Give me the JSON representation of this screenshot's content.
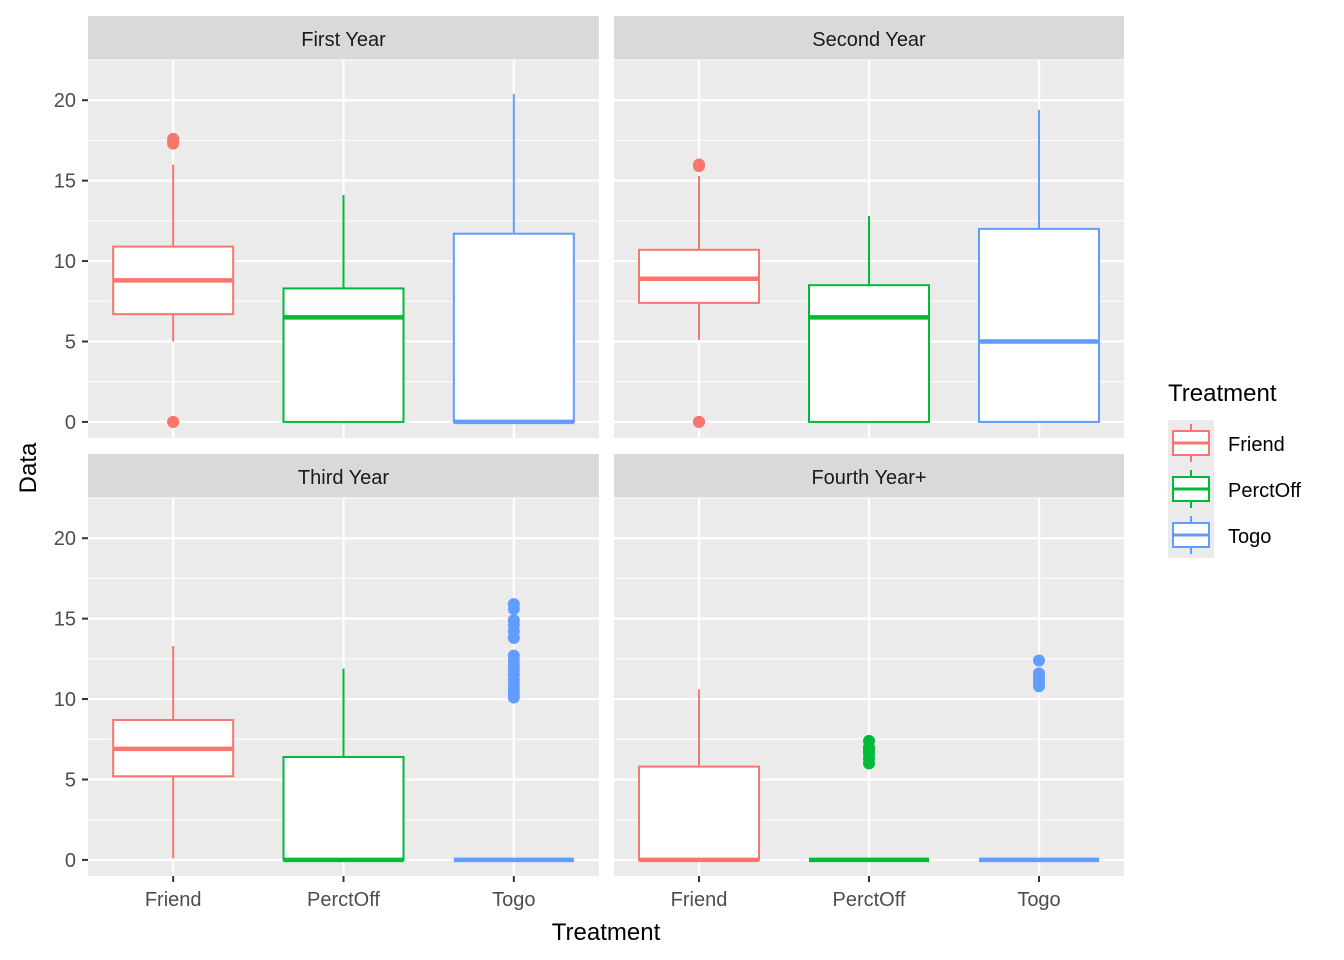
{
  "chart_data": {
    "type": "box",
    "xlabel": "Treatment",
    "ylabel": "Data",
    "ylim": [
      -1,
      22.5
    ],
    "yticks": [
      0,
      5,
      10,
      15,
      20
    ],
    "categories": [
      "Friend",
      "PerctOff",
      "Togo"
    ],
    "colors": {
      "Friend": "#F8766D",
      "PerctOff": "#00BA38",
      "Togo": "#619CFF"
    },
    "legend": {
      "title": "Treatment",
      "position": "right",
      "entries": [
        "Friend",
        "PerctOff",
        "Togo"
      ]
    },
    "facets": [
      {
        "title": "First Year",
        "boxes": [
          {
            "category": "Friend",
            "min": 5.0,
            "q1": 6.7,
            "median": 8.8,
            "q3": 10.9,
            "max": 16.0,
            "outliers": [
              17.3,
              17.4,
              17.5,
              17.6,
              0,
              0
            ]
          },
          {
            "category": "PerctOff",
            "min": 0,
            "q1": 0,
            "median": 6.5,
            "q3": 8.3,
            "max": 14.1,
            "outliers": []
          },
          {
            "category": "Togo",
            "min": 0,
            "q1": 0,
            "median": 0,
            "q3": 11.7,
            "max": 20.4,
            "outliers": []
          }
        ]
      },
      {
        "title": "Second Year",
        "boxes": [
          {
            "category": "Friend",
            "min": 5.1,
            "q1": 7.4,
            "median": 8.9,
            "q3": 10.7,
            "max": 15.3,
            "outliers": [
              15.9,
              16.0,
              0,
              0
            ]
          },
          {
            "category": "PerctOff",
            "min": 0,
            "q1": 0,
            "median": 6.5,
            "q3": 8.5,
            "max": 12.8,
            "outliers": []
          },
          {
            "category": "Togo",
            "min": 0,
            "q1": 0,
            "median": 5.0,
            "q3": 12.0,
            "max": 19.4,
            "outliers": []
          }
        ]
      },
      {
        "title": "Third Year",
        "boxes": [
          {
            "category": "Friend",
            "min": 0.1,
            "q1": 5.2,
            "median": 6.9,
            "q3": 8.7,
            "max": 13.3,
            "outliers": []
          },
          {
            "category": "PerctOff",
            "min": 0,
            "q1": 0,
            "median": 0,
            "q3": 6.4,
            "max": 11.9,
            "outliers": []
          },
          {
            "category": "Togo",
            "min": 0,
            "q1": 0,
            "median": 0,
            "q3": 0,
            "max": 0,
            "outliers": [
              10.1,
              10.3,
              10.6,
              10.9,
              11.2,
              11.5,
              11.8,
              12.1,
              12.4,
              12.7,
              13.8,
              14.2,
              14.6,
              14.9,
              15.6,
              15.9
            ]
          }
        ]
      },
      {
        "title": "Fourth Year+",
        "boxes": [
          {
            "category": "Friend",
            "min": 0,
            "q1": 0,
            "median": 0,
            "q3": 5.8,
            "max": 10.6,
            "outliers": []
          },
          {
            "category": "PerctOff",
            "min": 0,
            "q1": 0,
            "median": 0,
            "q3": 0,
            "max": 0,
            "outliers": [
              6.0,
              6.3,
              6.6,
              6.8,
              7.0,
              7.4
            ]
          },
          {
            "category": "Togo",
            "min": 0,
            "q1": 0,
            "median": 0,
            "q3": 0,
            "max": 0,
            "outliers": [
              10.8,
              11.0,
              11.3,
              11.6,
              12.4
            ]
          }
        ]
      }
    ]
  }
}
